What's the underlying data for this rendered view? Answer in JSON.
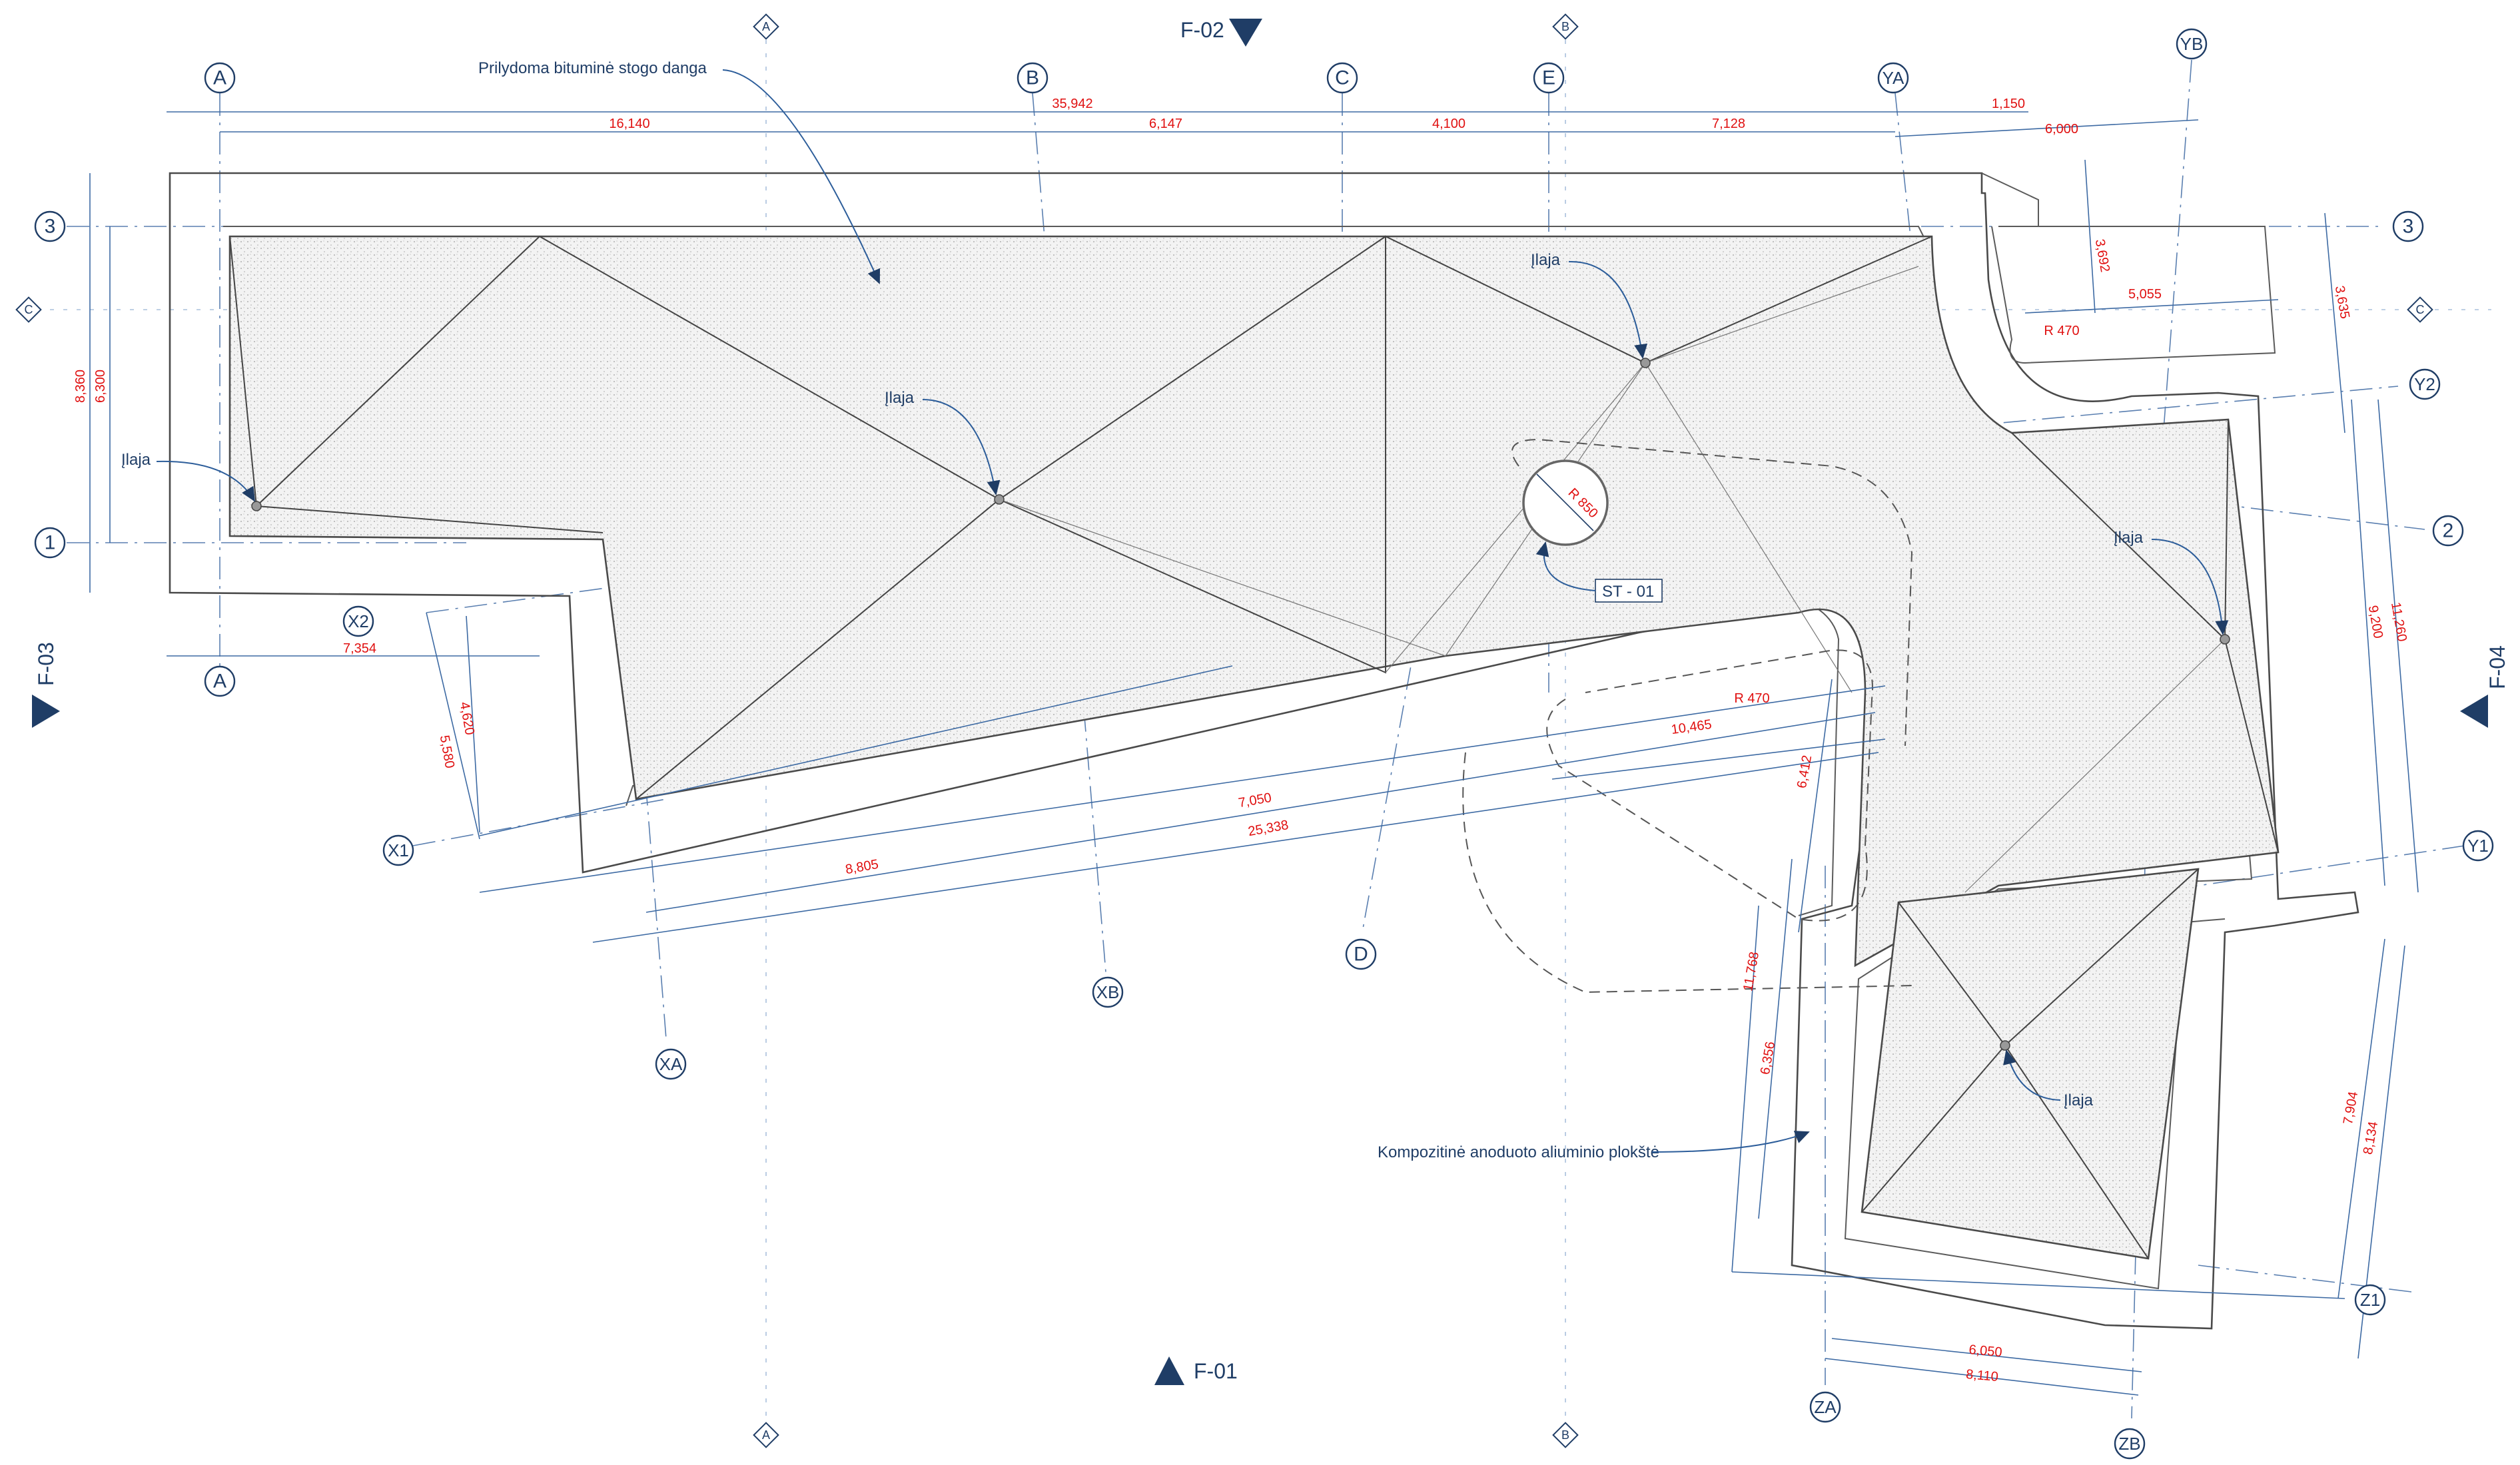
{
  "grid": {
    "A_top": "A",
    "A_bottom": "A",
    "B": "B",
    "C": "C",
    "D": "D",
    "E": "E",
    "YA": "YA",
    "YB": "YB",
    "XA": "XA",
    "XB": "XB",
    "ZA": "ZA",
    "ZB": "ZB",
    "X1": "X1",
    "X2": "X2",
    "Y1": "Y1",
    "Y2": "Y2",
    "Z1": "Z1",
    "row1": "1",
    "row2": "2",
    "row3_left": "3",
    "row3_right": "3"
  },
  "diamonds": {
    "A": "A",
    "B": "B",
    "C": "C"
  },
  "sections": {
    "f01": "F-01",
    "f02": "F-02",
    "f03": "F-03",
    "f04": "F-04"
  },
  "labels": {
    "roof_covering": "Prilydoma bituminė stogo danga",
    "drain": "Įlaja",
    "cladding": "Kompozitinė anoduoto aliuminio plokštė",
    "skylight": "ST - 01"
  },
  "dimensions": {
    "d35942": "35,942",
    "d1150": "1,150",
    "d16140": "16,140",
    "d6147": "6,147",
    "d4100": "4,100",
    "d7128": "7,128",
    "d6000": "6,000",
    "d3692": "3,692",
    "d5055": "5,055",
    "d3635": "3,635",
    "dR470a": "R 470",
    "dR470b": "R 470",
    "d8360": "8,360",
    "d6300": "6,300",
    "d7354": "7,354",
    "d4620": "4,620",
    "d5580": "5,580",
    "d7050": "7,050",
    "d25338": "25,338",
    "d8805": "8,805",
    "d10465": "10,465",
    "d6412": "6,412",
    "d11768": "11,768",
    "d6356": "6,356",
    "d9200": "9,200",
    "d11260": "11,260",
    "d7904": "7,904",
    "d8134": "8,134",
    "d6050": "6,050",
    "d8110": "8,110",
    "dR850": "R 850"
  },
  "colors": {
    "annotation_blue": "#1f3d66",
    "dimension_red": "#e01010",
    "outline_grey": "#4a4a4a"
  }
}
